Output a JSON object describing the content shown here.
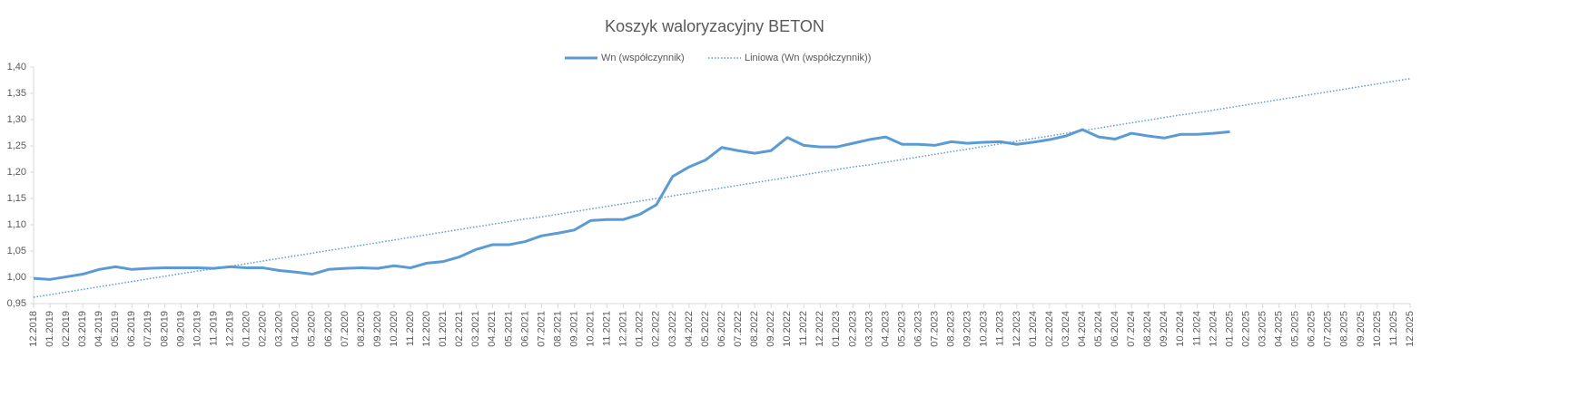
{
  "chart_data": {
    "type": "line",
    "title": "Koszyk waloryzacyjny BETON",
    "categories": [
      "12.2018",
      "01.2019",
      "02.2019",
      "03.2019",
      "04.2019",
      "05.2019",
      "06.2019",
      "07.2019",
      "08.2019",
      "09.2019",
      "10.2019",
      "11.2019",
      "12.2019",
      "01.2020",
      "02.2020",
      "03.2020",
      "04.2020",
      "05.2020",
      "06.2020",
      "07.2020",
      "08.2020",
      "09.2020",
      "10.2020",
      "11.2020",
      "12.2020",
      "01.2021",
      "02.2021",
      "03.2021",
      "04.2021",
      "05.2021",
      "06.2021",
      "07.2021",
      "08.2021",
      "09.2021",
      "10.2021",
      "11.2021",
      "12.2021",
      "01.2022",
      "02.2022",
      "03.2022",
      "04.2022",
      "05.2022",
      "06.2022",
      "07.2022",
      "08.2022",
      "09.2022",
      "10.2022",
      "11.2022",
      "12.2022",
      "01.2023",
      "02.2023",
      "03.2023",
      "04.2023",
      "05.2023",
      "06.2023",
      "07.2023",
      "08.2023",
      "09.2023",
      "10.2023",
      "11.2023",
      "12.2023",
      "01.2024",
      "02.2024",
      "03.2024",
      "04.2024",
      "05.2024",
      "06.2024",
      "07.2024",
      "08.2024",
      "09.2024",
      "10.2024",
      "11.2024",
      "12.2024",
      "01.2025",
      "02.2025",
      "03.2025",
      "04.2025",
      "05.2025",
      "06.2025",
      "07.2025",
      "08.2025",
      "09.2025",
      "10.2025",
      "11.2025",
      "12.2025"
    ],
    "series": [
      {
        "name": "Wn (współczynnik)",
        "color": "#5b9bd5",
        "line_style": "solid",
        "values": [
          0.998,
          0.996,
          1.001,
          1.006,
          1.015,
          1.02,
          1.015,
          1.017,
          1.018,
          1.018,
          1.018,
          1.017,
          1.02,
          1.018,
          1.018,
          1.013,
          1.01,
          1.006,
          1.015,
          1.017,
          1.018,
          1.017,
          1.022,
          1.018,
          1.027,
          1.03,
          1.039,
          1.053,
          1.062,
          1.062,
          1.068,
          1.079,
          1.084,
          1.09,
          1.108,
          1.11,
          1.11,
          1.12,
          1.138,
          1.192,
          1.21,
          1.223,
          1.247,
          1.241,
          1.236,
          1.241,
          1.266,
          1.251,
          1.248,
          1.248,
          1.255,
          1.262,
          1.267,
          1.253,
          1.253,
          1.251,
          1.258,
          1.255,
          1.257,
          1.258,
          1.253,
          1.257,
          1.262,
          1.269,
          1.281,
          1.267,
          1.263,
          1.274,
          1.269,
          1.265,
          1.272,
          1.272,
          1.274,
          1.277,
          null,
          null,
          null,
          null,
          null,
          null,
          null,
          null,
          null,
          null,
          null
        ]
      },
      {
        "name": "Liniowa (Wn (współczynnik))",
        "color": "#5b9bd5",
        "line_style": "dotted",
        "values": [
          0.962,
          0.967,
          0.972,
          0.977,
          0.982,
          0.987,
          0.992,
          0.997,
          1.002,
          1.007,
          1.012,
          1.016,
          1.021,
          1.026,
          1.031,
          1.036,
          1.041,
          1.046,
          1.051,
          1.056,
          1.061,
          1.066,
          1.071,
          1.076,
          1.081,
          1.086,
          1.091,
          1.096,
          1.101,
          1.106,
          1.111,
          1.115,
          1.12,
          1.125,
          1.13,
          1.135,
          1.14,
          1.145,
          1.15,
          1.155,
          1.16,
          1.165,
          1.17,
          1.175,
          1.18,
          1.185,
          1.19,
          1.195,
          1.2,
          1.205,
          1.21,
          1.214,
          1.219,
          1.224,
          1.229,
          1.234,
          1.239,
          1.244,
          1.249,
          1.254,
          1.259,
          1.264,
          1.269,
          1.274,
          1.279,
          1.284,
          1.289,
          1.294,
          1.299,
          1.304,
          1.309,
          1.313,
          1.318,
          1.323,
          1.328,
          1.333,
          1.338,
          1.343,
          1.348,
          1.353,
          1.358,
          1.363,
          1.368,
          1.373,
          1.378
        ]
      }
    ],
    "ylim": [
      0.95,
      1.4
    ],
    "yticks": [
      {
        "value": 0.95,
        "label": "0,95"
      },
      {
        "value": 1.0,
        "label": "1,00"
      },
      {
        "value": 1.05,
        "label": "1,05"
      },
      {
        "value": 1.1,
        "label": "1,10"
      },
      {
        "value": 1.15,
        "label": "1,15"
      },
      {
        "value": 1.2,
        "label": "1,20"
      },
      {
        "value": 1.25,
        "label": "1,25"
      },
      {
        "value": 1.3,
        "label": "1,30"
      },
      {
        "value": 1.35,
        "label": "1,35"
      },
      {
        "value": 1.4,
        "label": "1,40"
      }
    ],
    "grid": false,
    "legend": "top"
  }
}
